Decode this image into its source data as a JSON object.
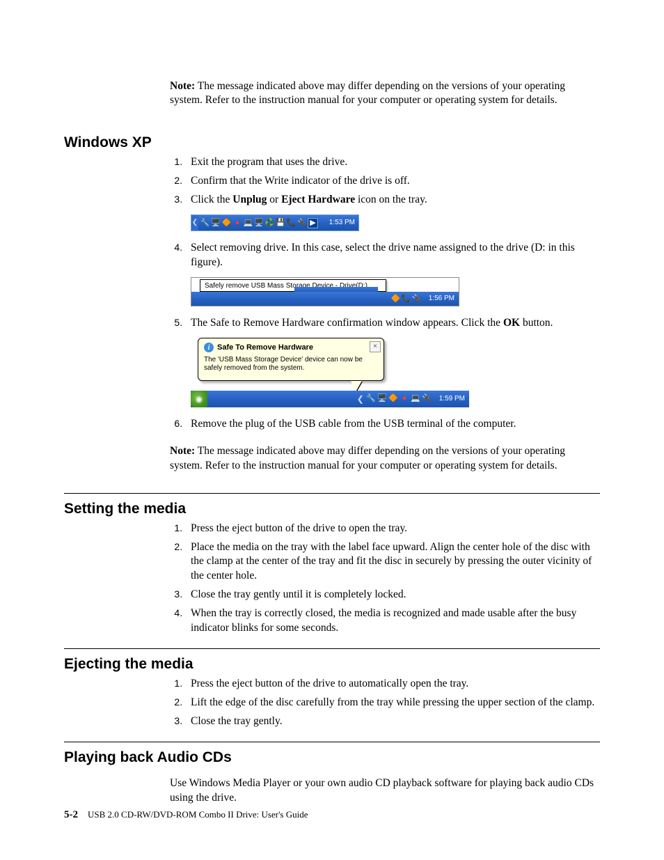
{
  "intro_note": {
    "label": "Note:",
    "text": " The message indicated above may differ depending on the versions of your operating system. Refer to the instruction manual for your computer or operating system for details."
  },
  "sec1": {
    "title": "Windows XP",
    "s1": "Exit the program that uses the drive.",
    "s2": "Confirm that the Write indicator of the drive is off.",
    "s3_a": "Click the ",
    "s3_b1": "Unplug",
    "s3_b": " or ",
    "s3_b2": "Eject Hardware",
    "s3_c": " icon on the tray.",
    "s4": "Select removing drive. In this case, select the drive name assigned to the drive (D: in this figure).",
    "s5_a": "The Safe to Remove Hardware confirmation window appears. Click the ",
    "s5_b": "OK",
    "s5_c": " button.",
    "s6": "Remove the plug of the USB cable from the USB terminal of the computer.",
    "note2_label": "Note:",
    "note2_text": " The message indicated above may differ depending on the versions of your operating system. Refer to the instruction manual for your computer or operating system for details."
  },
  "fig1": {
    "time": "1:53 PM"
  },
  "fig2": {
    "tip": "Safely remove USB Mass Storage Device - Drive(D:)",
    "time": "1:56 PM"
  },
  "fig3": {
    "title": "Safe To Remove Hardware",
    "text": "The 'USB Mass Storage Device' device can now be safely removed from the system.",
    "time": "1:59 PM"
  },
  "sec2": {
    "title": "Setting the media",
    "s1": "Press the eject button of the drive to open the tray.",
    "s2": "Place the media on the tray with the label face upward. Align the center hole of the disc with the clamp at the center of the tray and fit the disc in securely by pressing the outer vicinity of the center hole.",
    "s3": "Close the tray gently until it is completely locked.",
    "s4": "When the tray is correctly closed, the media is recognized and made usable after the busy indicator blinks for some seconds."
  },
  "sec3": {
    "title": "Ejecting the media",
    "s1": "Press the eject button of the drive to automatically open the tray.",
    "s2": "Lift the edge of the disc carefully from the tray while pressing the upper section of the clamp.",
    "s3": "Close the tray gently."
  },
  "sec4": {
    "title": "Playing back Audio CDs",
    "p": "Use Windows Media Player or your own audio CD playback software for playing back audio CDs using the drive."
  },
  "footer": {
    "page": "5-2",
    "book": "USB 2.0 CD-RW/DVD-ROM Combo II Drive: User's Guide"
  }
}
